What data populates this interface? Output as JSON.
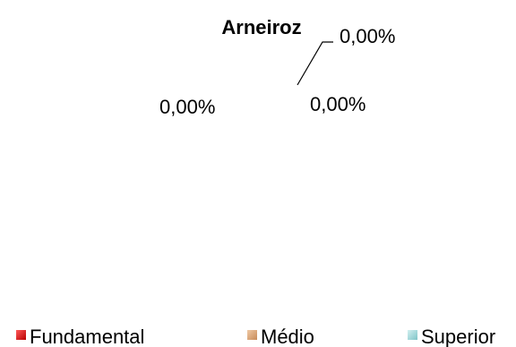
{
  "chart_data": {
    "type": "pie",
    "title": "Arneiroz",
    "categories": [
      "Fundamental",
      "Médio",
      "Superior"
    ],
    "values": [
      0,
      0,
      0
    ],
    "data_labels": [
      "0,00%",
      "0,00%",
      "0,00%"
    ],
    "legend": {
      "position": "bottom",
      "entries": [
        {
          "label": "Fundamental",
          "color": "#d60000"
        },
        {
          "label": "Médio",
          "color": "#d9a57c"
        },
        {
          "label": "Superior",
          "color": "#a9dcdc"
        }
      ]
    }
  }
}
